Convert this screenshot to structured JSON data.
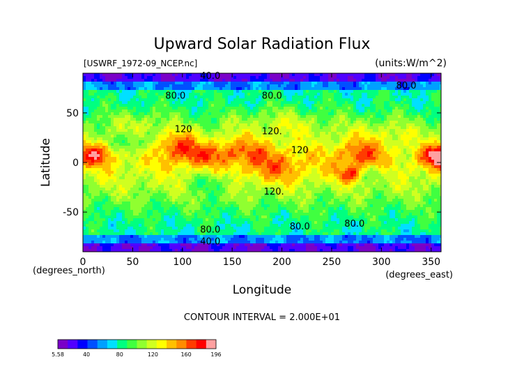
{
  "chart_data": {
    "type": "heatmap",
    "title": "Upward Solar Radiation Flux",
    "file_label": "[USWRF_1972-09_NCEP.nc]",
    "units_label": "(units:W/m^2)",
    "xlabel": "Longitude",
    "ylabel": "Latitude",
    "x_unit_label": "(degrees_east)",
    "y_unit_label": "(degrees_north)",
    "xlim": [
      0,
      360
    ],
    "ylim": [
      -90,
      90
    ],
    "x_ticks": [
      0,
      50,
      100,
      150,
      200,
      250,
      300,
      350
    ],
    "y_ticks": [
      -50,
      0,
      50
    ],
    "contour_interval_text": "CONTOUR INTERVAL = 2.000E+01",
    "contour_labels": [
      {
        "text": "40.0",
        "lon": 128,
        "lat": 88
      },
      {
        "text": "80.0",
        "lon": 93,
        "lat": 68
      },
      {
        "text": "80.0",
        "lon": 190,
        "lat": 68
      },
      {
        "text": "80.0",
        "lon": 325,
        "lat": 78
      },
      {
        "text": "120",
        "lon": 101,
        "lat": 34
      },
      {
        "text": "120.",
        "lon": 190,
        "lat": 32
      },
      {
        "text": "120",
        "lon": 218,
        "lat": 13
      },
      {
        "text": "120.",
        "lon": 192,
        "lat": -29
      },
      {
        "text": "80.0",
        "lon": 128,
        "lat": -67
      },
      {
        "text": "80.0",
        "lon": 218,
        "lat": -64
      },
      {
        "text": "80.0",
        "lon": 273,
        "lat": -61
      },
      {
        "text": "40.0",
        "lon": 128,
        "lat": -79
      }
    ],
    "colorbar": {
      "min": 5.58,
      "max": 196,
      "tick_labels": [
        "5.58",
        "40",
        "80",
        "120",
        "160",
        "196"
      ],
      "colors": [
        "#7a00c8",
        "#5000ff",
        "#0000ff",
        "#0050ff",
        "#00a0ff",
        "#00e0ff",
        "#00ff80",
        "#40ff40",
        "#90ff30",
        "#d0ff20",
        "#ffff00",
        "#ffc000",
        "#ff8c00",
        "#ff3c00",
        "#ff0000",
        "#ffa0a0"
      ]
    }
  }
}
